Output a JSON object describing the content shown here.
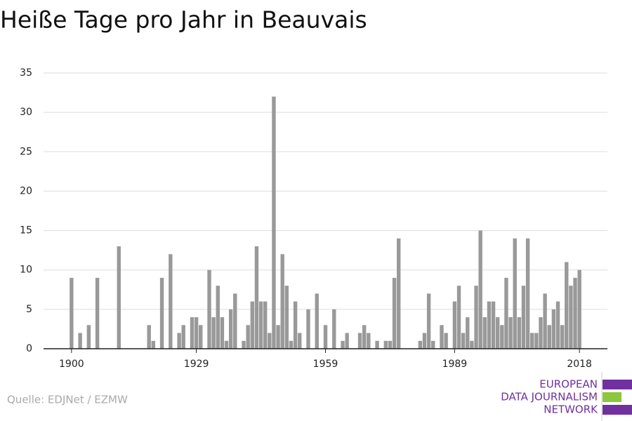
{
  "chart_data": {
    "type": "bar",
    "title": "Heiße Tage pro Jahr in Beauvais",
    "x": [
      1900,
      1902,
      1904,
      1906,
      1911,
      1918,
      1919,
      1921,
      1923,
      1925,
      1926,
      1928,
      1929,
      1930,
      1932,
      1933,
      1934,
      1935,
      1936,
      1937,
      1938,
      1940,
      1941,
      1942,
      1943,
      1944,
      1945,
      1946,
      1947,
      1948,
      1949,
      1950,
      1951,
      1952,
      1953,
      1955,
      1957,
      1959,
      1961,
      1963,
      1964,
      1967,
      1968,
      1969,
      1971,
      1973,
      1974,
      1975,
      1976,
      1981,
      1982,
      1983,
      1984,
      1986,
      1987,
      1989,
      1990,
      1991,
      1992,
      1993,
      1994,
      1995,
      1996,
      1997,
      1998,
      1999,
      2000,
      2001,
      2002,
      2003,
      2004,
      2005,
      2006,
      2007,
      2008,
      2009,
      2010,
      2011,
      2012,
      2013,
      2014,
      2015,
      2016,
      2017,
      2018
    ],
    "values": [
      9,
      2,
      3,
      9,
      13,
      3,
      1,
      9,
      12,
      2,
      3,
      4,
      4,
      3,
      10,
      4,
      8,
      4,
      1,
      5,
      7,
      1,
      3,
      6,
      13,
      6,
      6,
      2,
      32,
      3,
      12,
      8,
      1,
      6,
      2,
      5,
      7,
      3,
      5,
      1,
      2,
      2,
      3,
      2,
      1,
      1,
      1,
      9,
      14,
      1,
      2,
      7,
      1,
      3,
      2,
      6,
      8,
      2,
      4,
      1,
      8,
      15,
      4,
      6,
      6,
      4,
      3,
      9,
      4,
      14,
      4,
      8,
      14,
      2,
      2,
      4,
      7,
      3,
      5,
      6,
      3,
      11,
      8,
      9,
      10
    ],
    "color": "#999999",
    "xlim": [
      1893.5,
      2024.5
    ],
    "xticks": [
      1900,
      1929,
      1959,
      1989,
      2018
    ],
    "ylim": [
      0,
      35
    ],
    "yticks": [
      0,
      5,
      10,
      15,
      20,
      25,
      30,
      35
    ],
    "grid": true,
    "source": "Quelle: EDJNet / EZMW",
    "logo": [
      "EUROPEAN",
      "DATA JOURNALISM",
      "NETWORK"
    ]
  }
}
